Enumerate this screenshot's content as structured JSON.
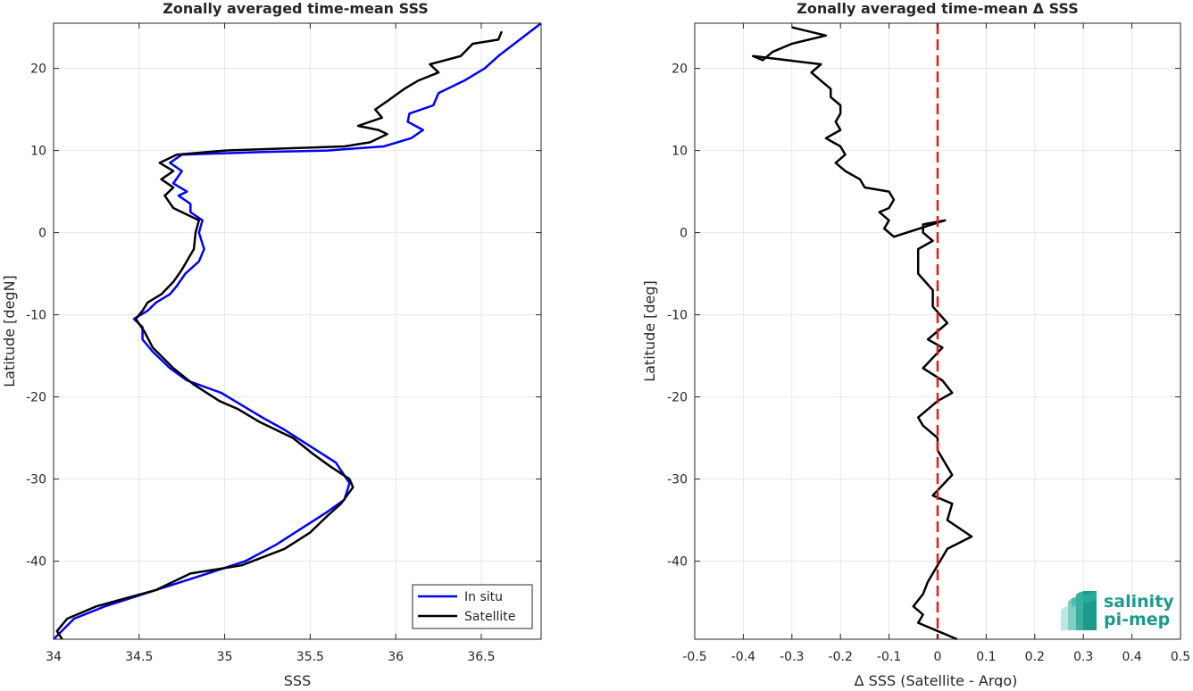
{
  "chart_data": [
    {
      "type": "line",
      "title": "Zonally averaged time-mean SSS",
      "xlabel": "SSS",
      "ylabel": "Latitude [degN]",
      "xlim": [
        34,
        36.85
      ],
      "ylim": [
        -49.5,
        25.5
      ],
      "xticks": [
        "34",
        "34.5",
        "35",
        "35.5",
        "36",
        "36.5"
      ],
      "xtick_values": [
        34,
        34.5,
        35,
        35.5,
        36,
        36.5
      ],
      "yticks": [
        "20",
        "10",
        "0",
        "-10",
        "-20",
        "-30",
        "-40"
      ],
      "ytick_values": [
        20,
        10,
        0,
        -10,
        -20,
        -30,
        -40
      ],
      "grid": true,
      "legend_position": "bottom-right",
      "series": [
        {
          "name": "In situ",
          "color": "#0000ff",
          "x": [
            36.85,
            36.6,
            36.52,
            36.4,
            36.25,
            36.22,
            36.08,
            36.07,
            36.16,
            36.09,
            35.93,
            35.6,
            35.2,
            34.75,
            34.68,
            34.75,
            34.7,
            34.78,
            34.73,
            34.8,
            34.8,
            34.87,
            34.85,
            34.88,
            34.85,
            34.77,
            34.72,
            34.68,
            34.6,
            34.55,
            34.47,
            34.52,
            34.52,
            34.58,
            34.68,
            34.78,
            34.98,
            35.1,
            35.22,
            35.35,
            35.5,
            35.65,
            35.73,
            35.7,
            35.6,
            35.45,
            35.3,
            35.12,
            34.9,
            34.6,
            34.3,
            34.12,
            34.0
          ],
          "y": [
            25.5,
            21.5,
            20.0,
            18.5,
            17.0,
            15.5,
            14.5,
            13.5,
            12.5,
            11.5,
            10.5,
            10.0,
            9.8,
            9.5,
            8.5,
            7.5,
            6.0,
            5.0,
            4.5,
            3.5,
            2.5,
            1.5,
            0.0,
            -2.0,
            -3.5,
            -5.0,
            -6.5,
            -7.5,
            -8.5,
            -9.5,
            -10.5,
            -11.5,
            -13.0,
            -14.5,
            -16.5,
            -18.0,
            -19.5,
            -21.0,
            -22.5,
            -24.0,
            -26.0,
            -28.0,
            -30.5,
            -32.5,
            -34.0,
            -36.0,
            -38.0,
            -40.0,
            -41.5,
            -43.5,
            -45.5,
            -47.0,
            -49.5
          ]
        },
        {
          "name": "Satellite",
          "color": "#000000",
          "x": [
            36.62,
            36.6,
            36.45,
            36.38,
            36.2,
            36.25,
            36.13,
            36.05,
            35.95,
            35.88,
            35.92,
            35.78,
            35.9,
            35.95,
            35.85,
            35.7,
            35.0,
            34.72,
            34.62,
            34.7,
            34.63,
            34.7,
            34.65,
            34.7,
            34.8,
            34.85,
            34.83,
            34.82,
            34.75,
            34.7,
            34.63,
            34.55,
            34.52,
            34.48,
            34.53,
            34.58,
            34.7,
            34.82,
            34.97,
            35.08,
            35.2,
            35.4,
            35.52,
            35.62,
            35.73,
            35.75,
            35.68,
            35.6,
            35.5,
            35.35,
            35.1,
            34.8,
            34.6,
            34.25,
            34.08,
            34.02,
            34.05
          ],
          "y": [
            24.5,
            23.5,
            23.0,
            21.5,
            20.5,
            19.5,
            18.5,
            17.5,
            16.0,
            15.0,
            14.0,
            13.0,
            12.5,
            12.0,
            11.0,
            10.5,
            10.0,
            9.5,
            8.5,
            7.5,
            6.5,
            5.5,
            4.5,
            3.0,
            2.0,
            1.5,
            0.0,
            -2.0,
            -4.5,
            -6.0,
            -7.5,
            -8.5,
            -9.5,
            -10.5,
            -12.0,
            -14.0,
            -16.5,
            -18.5,
            -20.5,
            -21.5,
            -23.0,
            -25.0,
            -27.0,
            -28.5,
            -30.0,
            -31.0,
            -33.0,
            -34.5,
            -36.5,
            -38.5,
            -40.5,
            -41.5,
            -43.5,
            -45.5,
            -47.0,
            -48.5,
            -49.5
          ]
        }
      ]
    },
    {
      "type": "line",
      "title": "Zonally averaged time-mean Δ SSS",
      "xlabel": "Δ SSS (Satellite - Argo)",
      "ylabel": "Latitude [deg]",
      "xlim": [
        -0.5,
        0.5
      ],
      "ylim": [
        -49.5,
        25.5
      ],
      "xticks": [
        "-0.5",
        "-0.4",
        "-0.3",
        "-0.2",
        "-0.1",
        "0",
        "0.1",
        "0.2",
        "0.3",
        "0.4",
        "0.5"
      ],
      "xtick_values": [
        -0.5,
        -0.4,
        -0.3,
        -0.2,
        -0.1,
        0,
        0.1,
        0.2,
        0.3,
        0.4,
        0.5
      ],
      "yticks": [
        "20",
        "10",
        "0",
        "-10",
        "-20",
        "-30",
        "-40"
      ],
      "ytick_values": [
        20,
        10,
        0,
        -10,
        -20,
        -30,
        -40
      ],
      "grid": true,
      "reference_line": {
        "x": 0,
        "color": "#e41a1c",
        "style": "dashed"
      },
      "series": [
        {
          "color": "#000000",
          "x": [
            -0.3,
            -0.23,
            -0.3,
            -0.34,
            -0.36,
            -0.38,
            -0.24,
            -0.26,
            -0.24,
            -0.22,
            -0.22,
            -0.2,
            -0.2,
            -0.21,
            -0.2,
            -0.23,
            -0.2,
            -0.19,
            -0.21,
            -0.19,
            -0.16,
            -0.15,
            -0.1,
            -0.09,
            -0.1,
            -0.12,
            -0.1,
            -0.11,
            -0.09,
            0.015,
            -0.03,
            -0.03,
            -0.01,
            -0.04,
            -0.04,
            -0.04,
            -0.01,
            -0.01,
            0.02,
            0.0,
            -0.02,
            0.01,
            -0.03,
            0.01,
            0.03,
            0.0,
            -0.02,
            -0.04,
            -0.03,
            0.0,
            0.0,
            0.03,
            -0.01,
            0.03,
            0.02,
            0.07,
            0.02,
            0.0,
            -0.02,
            -0.03,
            -0.05,
            -0.03,
            -0.04,
            0.0,
            0.04
          ],
          "y": [
            25.0,
            24.0,
            23.0,
            22.0,
            21.0,
            21.5,
            20.5,
            19.5,
            18.5,
            17.5,
            16.5,
            15.5,
            14.5,
            13.5,
            12.5,
            11.5,
            10.5,
            9.5,
            8.5,
            7.5,
            6.5,
            5.5,
            5.0,
            4.0,
            3.0,
            2.5,
            1.5,
            0.5,
            -0.5,
            1.5,
            1.0,
            0.0,
            -1.0,
            -2.0,
            -3.5,
            -5.0,
            -7.0,
            -9.0,
            -11.0,
            -12.0,
            -13.0,
            -14.0,
            -16.5,
            -18.0,
            -19.5,
            -20.5,
            -21.5,
            -22.5,
            -23.5,
            -25.0,
            -26.5,
            -29.5,
            -32.0,
            -33.0,
            -35.0,
            -37.0,
            -38.5,
            -40.5,
            -42.5,
            -44.0,
            -45.5,
            -46.5,
            -47.5,
            -48.5,
            -49.5
          ]
        }
      ]
    }
  ],
  "logo": {
    "line1": "salinity",
    "line2": "pi-mep",
    "color": "#1c9a8c"
  }
}
